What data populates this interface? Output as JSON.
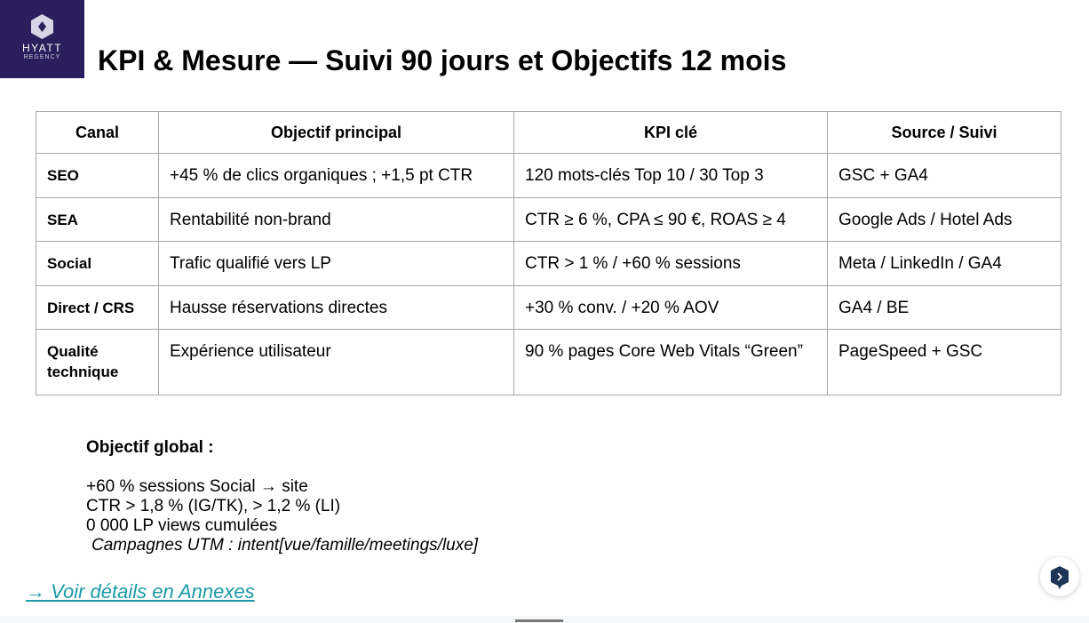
{
  "logo": {
    "line1": "HYATT",
    "line2": "REGENCY"
  },
  "title": "KPI & Mesure — Suivi 90 jours et Objectifs 12 mois",
  "table": {
    "headers": [
      "Canal",
      "Objectif principal",
      "KPI clé",
      "Source / Suivi"
    ],
    "rows": [
      [
        "SEO",
        "+45 % de clics organiques ; +1,5 pt CTR",
        "120 mots-clés Top 10 / 30 Top 3",
        "GSC + GA4"
      ],
      [
        "SEA",
        "Rentabilité non-brand",
        "CTR ≥ 6 %, CPA ≤ 90 €, ROAS ≥ 4",
        "Google Ads / Hotel Ads"
      ],
      [
        "Social",
        "Trafic qualifié vers LP",
        "CTR > 1 % / +60 % sessions",
        "Meta / LinkedIn / GA4"
      ],
      [
        "Direct / CRS",
        "Hausse réservations directes",
        "+30 % conv. / +20 % AOV",
        "GA4 / BE"
      ],
      [
        "Qualité technique",
        "Expérience utilisateur",
        "90 % pages Core Web Vitals “Green”",
        "PageSpeed + GSC"
      ]
    ]
  },
  "objective": {
    "title": "Objectif global :",
    "lines": [
      "+60 % sessions Social → site",
      "CTR > 1,8 % (IG/TK), > 1,2 % (LI)",
      "0 000 LP views cumulées"
    ],
    "italic": "Campagnes UTM : intent[vue/famille/meetings/luxe]"
  },
  "link": "→ Voir détails en Annexes",
  "colors": {
    "brand": "#2a1f5c",
    "link": "#1a9aa6"
  }
}
